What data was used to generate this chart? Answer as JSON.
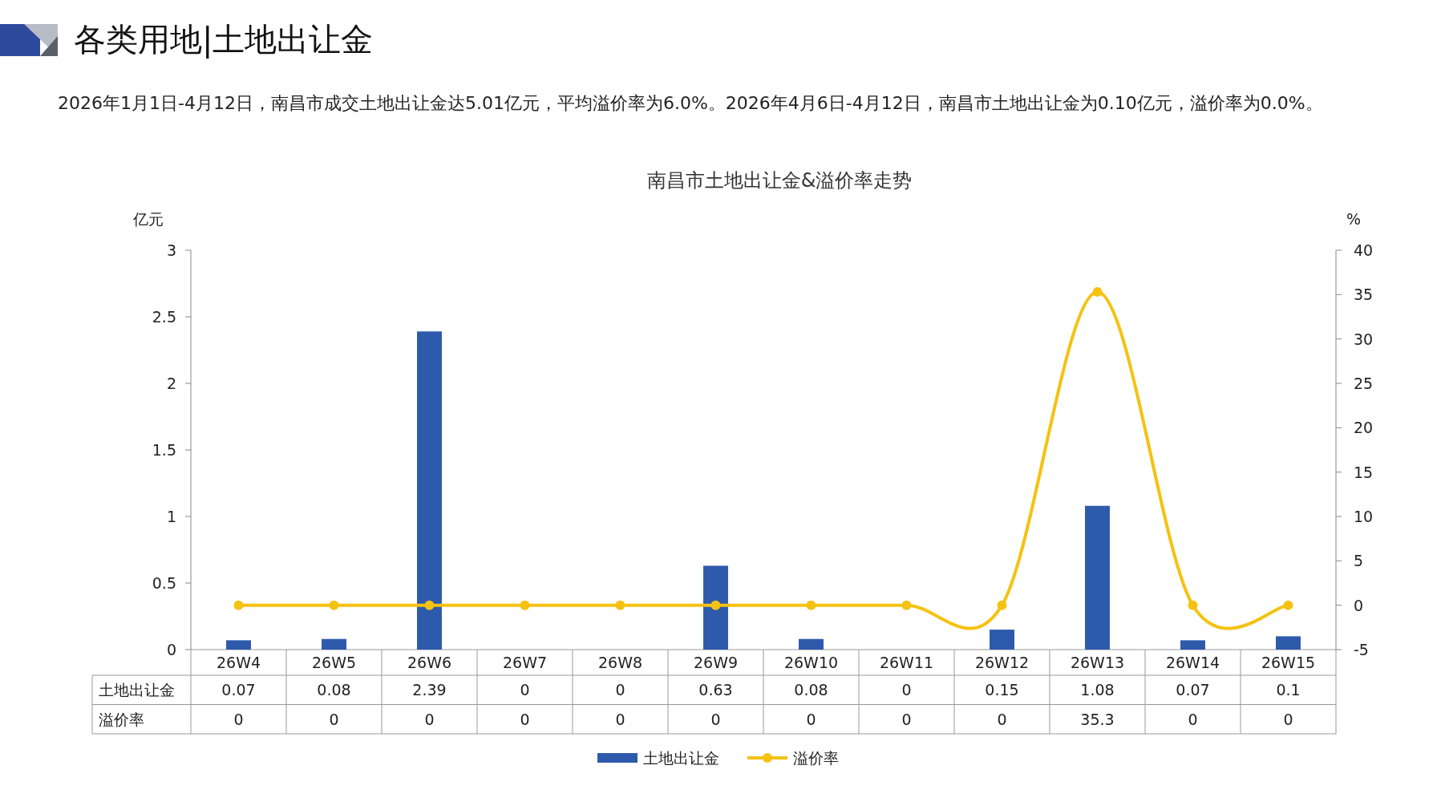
{
  "chart_data": {
    "type": "bar",
    "title": "南昌市土地出让金&溢价率走势",
    "annotations": [
      "各类用地|土地出让金",
      "2026年1月1日-4月12日，南昌市成交土地出让金达5.01亿元，平均溢价率为6.0%。2026年4月6日-4月12日，南昌市土地出让金为0.10亿元，溢价率为0.0%。"
    ],
    "categories": [
      "26W4",
      "26W5",
      "26W6",
      "26W7",
      "26W8",
      "26W9",
      "26W10",
      "26W11",
      "26W12",
      "26W13",
      "26W14",
      "26W15"
    ],
    "series": [
      {
        "name": "土地出让金",
        "color": "#2e5aac",
        "values": [
          0.07,
          0.08,
          2.39,
          0,
          0,
          0.63,
          0.08,
          0,
          0.15,
          1.08,
          0.07,
          0.1
        ]
      },
      {
        "name": "溢价率",
        "type": "line",
        "axis": "y2",
        "color": "#f5c211",
        "marker": "circle",
        "values": [
          0,
          0,
          0,
          0,
          0,
          0,
          0,
          0,
          0,
          35.3,
          0,
          0
        ]
      }
    ],
    "ylabel": "亿元",
    "y2label": "%",
    "ylim": [
      0,
      3
    ],
    "yticks": [
      0,
      0.5,
      1,
      1.5,
      2,
      2.5,
      3
    ],
    "y2lim": [
      -5,
      40
    ],
    "y2ticks": [
      -5,
      0,
      5,
      10,
      15,
      20,
      25,
      30,
      35,
      40
    ],
    "data_labels": true,
    "legend": "bottom",
    "grid": false
  }
}
